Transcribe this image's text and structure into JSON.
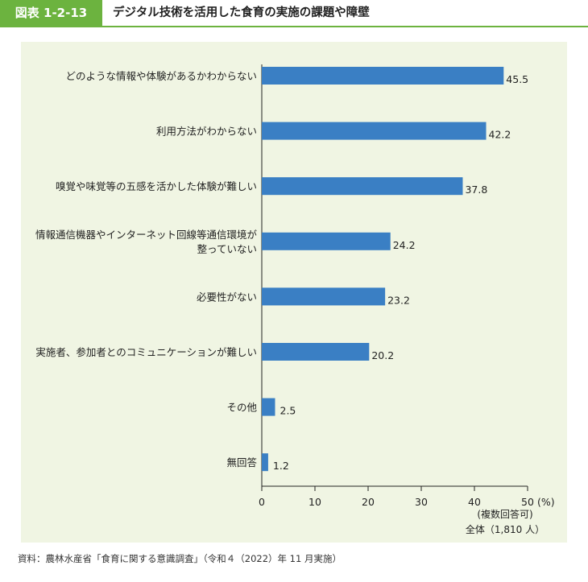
{
  "figure": {
    "number": "図表 1-2-13",
    "title": "デジタル技術を活用した食育の実施の課題や障壁",
    "source": "資料：農林水産省「食育に関する意識調査」（令和４（2022）年 11 月実施）"
  },
  "colors": {
    "accent": "#6cb33f",
    "panel": "#f0f5e3",
    "bar": "#3a7fc4",
    "axis": "#222222"
  },
  "chart_data": {
    "type": "bar",
    "orientation": "horizontal",
    "categories": [
      [
        "どのような情報や体験があるかわからない"
      ],
      [
        "利用方法がわからない"
      ],
      [
        "嗅覚や味覚等の五感を活かした体験が難しい"
      ],
      [
        "情報通信機器やインターネット回線等通信環境が",
        "整っていない"
      ],
      [
        "必要性がない"
      ],
      [
        "実施者、参加者とのコミュニケーションが難しい"
      ],
      [
        "その他"
      ],
      [
        "無回答"
      ]
    ],
    "values": [
      45.5,
      42.2,
      37.8,
      24.2,
      23.2,
      20.2,
      2.5,
      1.2
    ],
    "value_labels": [
      "45.5",
      "42.2",
      "37.8",
      "24.2",
      "23.2",
      "20.2",
      "2.5",
      "1.2"
    ],
    "xlim": [
      0,
      50
    ],
    "xticks": [
      0,
      10,
      20,
      30,
      40,
      50
    ],
    "xtick_labels": [
      "0",
      "10",
      "20",
      "30",
      "40",
      "50"
    ],
    "unit_label": "(%)",
    "notes": [
      "(複数回答可)",
      "全体（1,810 人）"
    ],
    "legend": "none",
    "grid": false
  }
}
